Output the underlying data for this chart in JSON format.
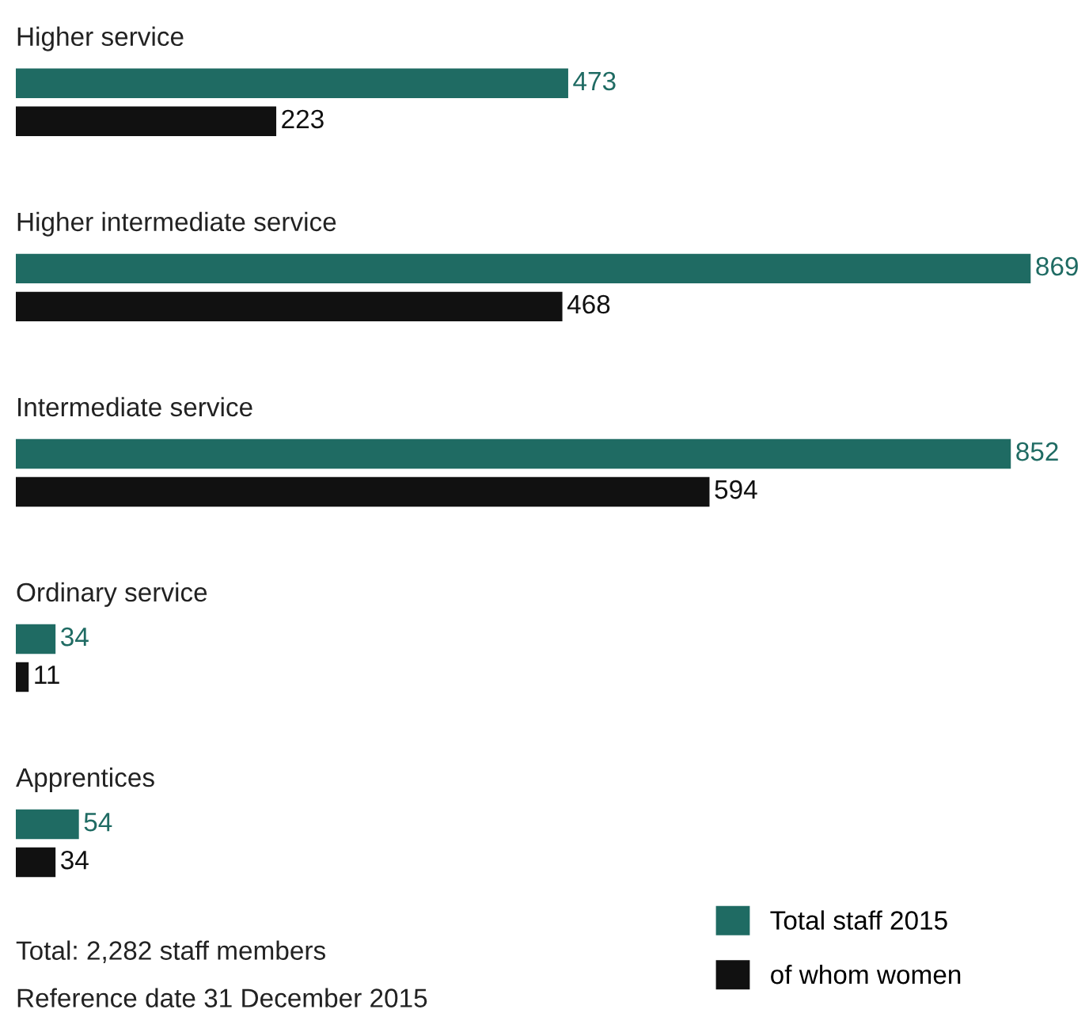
{
  "chart_data": {
    "type": "bar",
    "orientation": "horizontal",
    "categories": [
      "Higher service",
      "Higher intermediate service",
      "Intermediate service",
      "Ordinary service",
      "Apprentices"
    ],
    "series": [
      {
        "name": "Total staff 2015",
        "color": "#1f6b63",
        "values": [
          473,
          869,
          852,
          34,
          54
        ]
      },
      {
        "name": "of whom women",
        "color": "#111111",
        "values": [
          223,
          468,
          594,
          11,
          34
        ]
      }
    ],
    "data_labels": true,
    "legend": "bottom right",
    "grid": false,
    "tick_labels": false,
    "annotations": [
      "Total: 2,282 staff members",
      "Reference date 31 December 2015"
    ]
  }
}
